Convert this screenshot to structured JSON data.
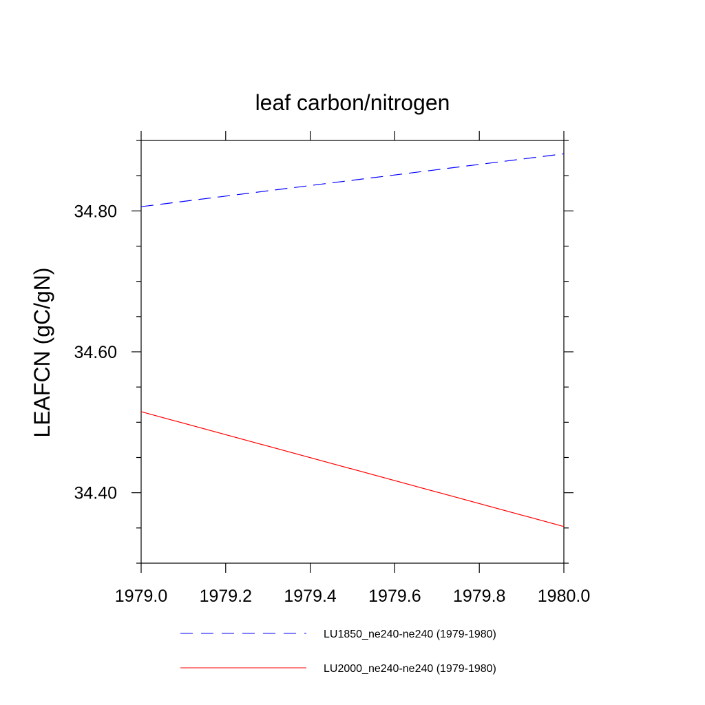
{
  "chart_data": {
    "type": "line",
    "title": "leaf carbon/nitrogen",
    "xlabel": "",
    "ylabel": "LEAFCN  (gC/gN)",
    "xlim": [
      1979.0,
      1980.0
    ],
    "ylim": [
      34.3,
      34.9
    ],
    "x_ticks": [
      "1979.0",
      "1979.2",
      "1979.4",
      "1979.6",
      "1979.8",
      "1980.0"
    ],
    "y_ticks": [
      "34.40",
      "34.60",
      "34.80"
    ],
    "grid": false,
    "legend_position": "bottom",
    "series": [
      {
        "name": "LU1850_ne240-ne240 (1979-1980)",
        "color": "#0000ff",
        "style": "dashed",
        "x": [
          1979.0,
          1980.0
        ],
        "y": [
          34.806,
          34.881
        ]
      },
      {
        "name": "LU2000_ne240-ne240 (1979-1980)",
        "color": "#ff0000",
        "style": "solid",
        "x": [
          1979.0,
          1980.0
        ],
        "y": [
          34.515,
          34.352
        ]
      }
    ]
  }
}
